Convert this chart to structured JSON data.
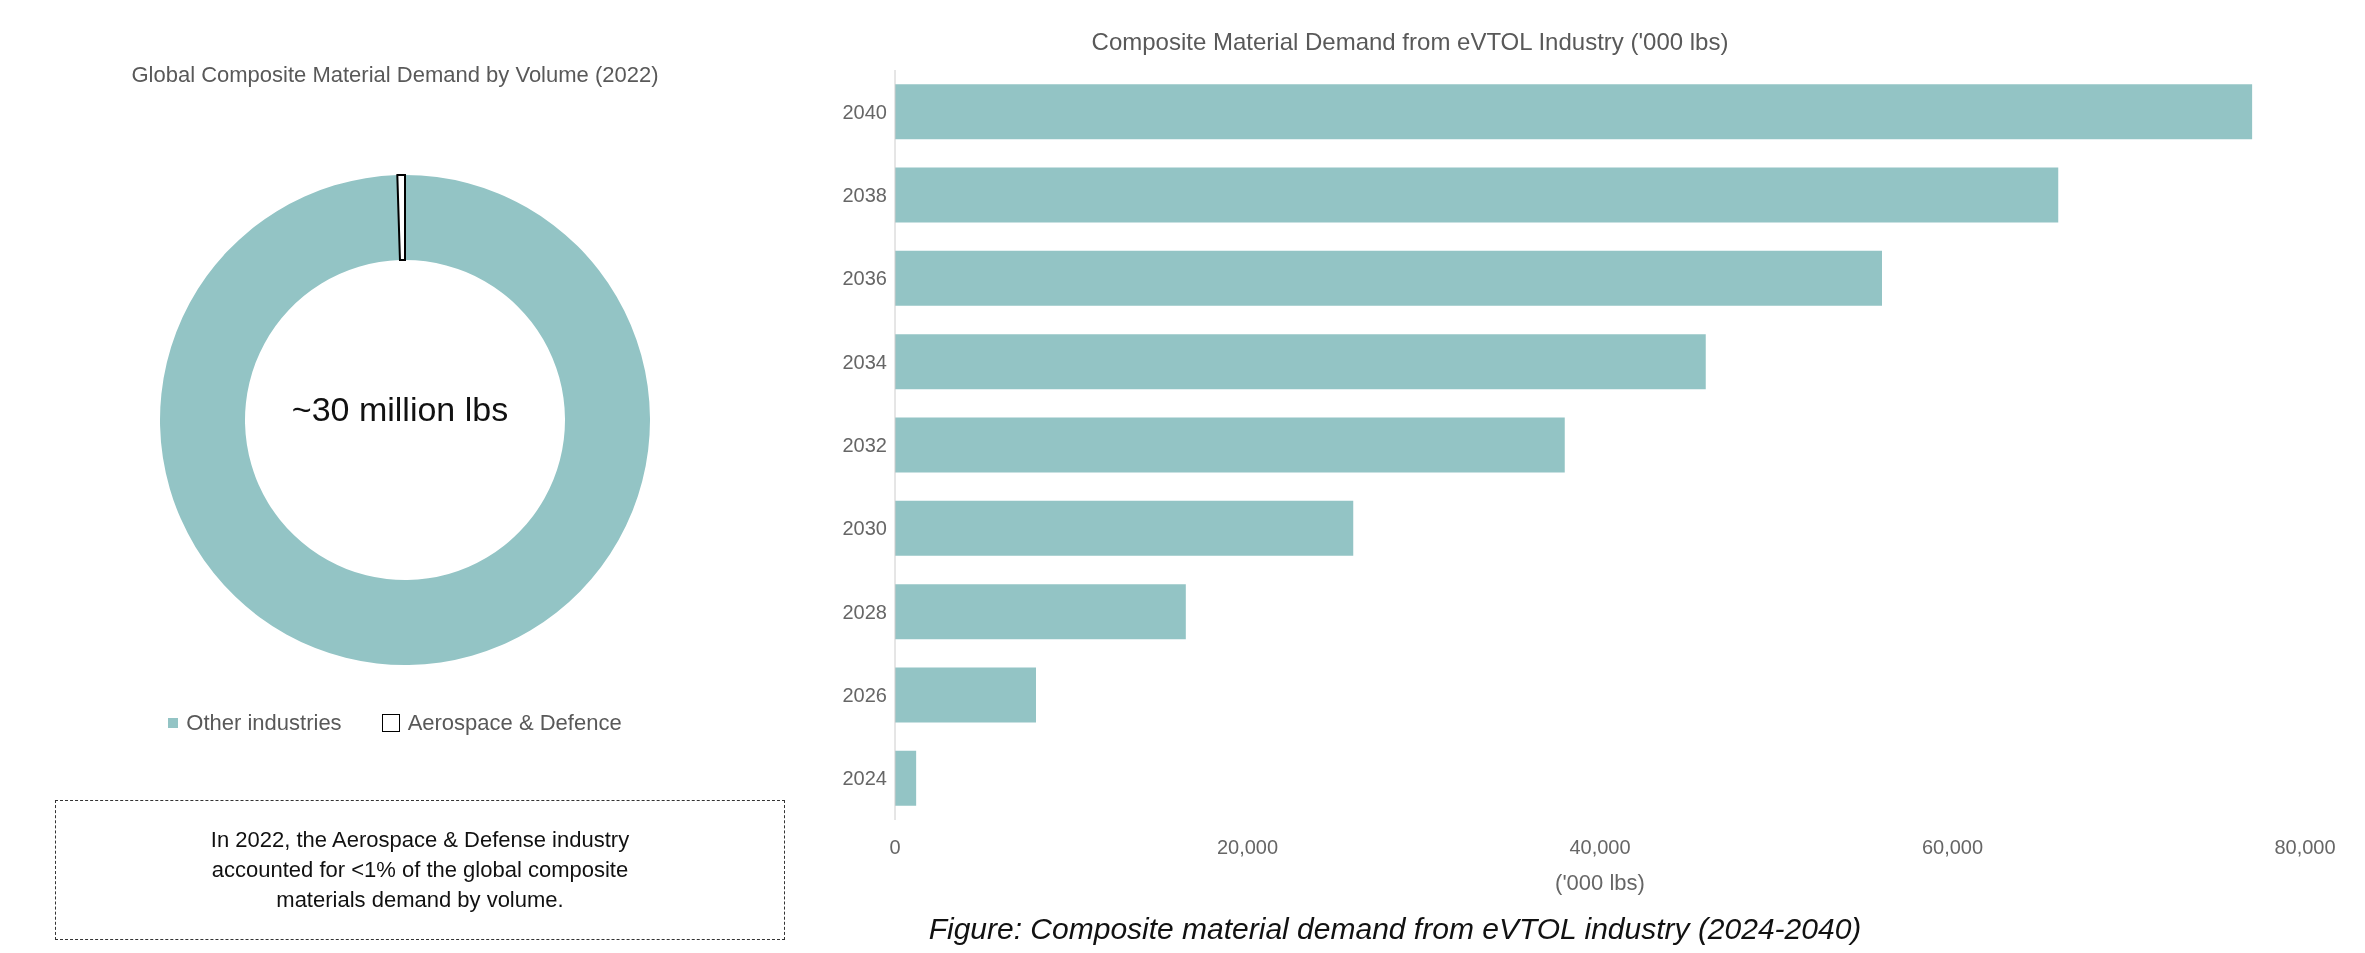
{
  "chart_data": [
    {
      "type": "donut",
      "title": "Global Composite Material Demand by Volume (2022)",
      "categories": [
        "Other industries",
        "Aerospace & Defence"
      ],
      "values": [
        99.5,
        0.5
      ],
      "colors": [
        "#93c4c5",
        "#ffffff"
      ],
      "legend": "bottom",
      "annotations": [
        "~30 million lbs",
        "In 2022, the Aerospace & Defense industry accounted for <1% of the global composite materials demand by volume."
      ]
    },
    {
      "type": "bar",
      "orientation": "horizontal",
      "title": "Composite Material Demand from eVTOL Industry ('000 lbs)",
      "xlabel": "('000 lbs)",
      "categories": [
        "2040",
        "2038",
        "2036",
        "2034",
        "2032",
        "2030",
        "2028",
        "2026",
        "2024"
      ],
      "values": [
        77000,
        66000,
        56000,
        46000,
        38000,
        26000,
        16500,
        8000,
        1200
      ],
      "color": "#93c4c5",
      "xlim": [
        0,
        80000
      ],
      "xticks": [
        0,
        {
          "value": 20000,
          "label": "20,000"
        },
        {
          "value": 40000,
          "label": "40,000"
        },
        {
          "value": 60000,
          "label": "60,000"
        },
        {
          "value": 80000,
          "label": "80,000"
        }
      ],
      "grid": false,
      "annotations": [
        "Figure: Composite material demand from eVTOL industry (2024-2040)"
      ]
    }
  ]
}
